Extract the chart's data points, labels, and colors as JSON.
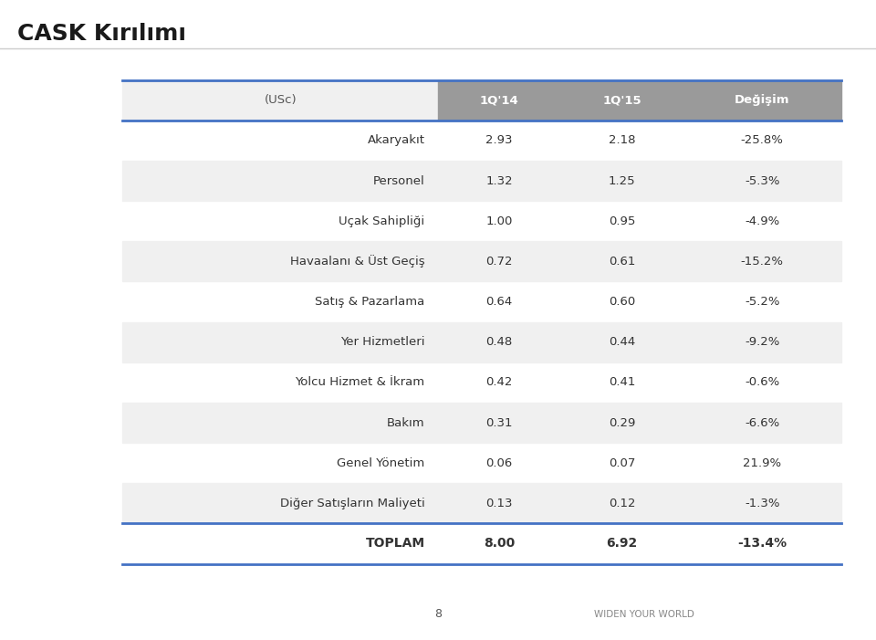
{
  "title_display": "CASK Kırılımı",
  "header": [
    "(USc)",
    "1Q'14",
    "1Q'15",
    "Değişim"
  ],
  "rows": [
    [
      "Akaryakıt",
      "2.93",
      "2.18",
      "-25.8%"
    ],
    [
      "Personel",
      "1.32",
      "1.25",
      "-5.3%"
    ],
    [
      "Uçak Sahipliği",
      "1.00",
      "0.95",
      "-4.9%"
    ],
    [
      "Havaalanı & Üst Geçiş",
      "0.72",
      "0.61",
      "-15.2%"
    ],
    [
      "Satış & Pazarlama",
      "0.64",
      "0.60",
      "-5.2%"
    ],
    [
      "Yer Hizmetleri",
      "0.48",
      "0.44",
      "-9.2%"
    ],
    [
      "Yolcu Hizmet & İkram",
      "0.42",
      "0.41",
      "-0.6%"
    ],
    [
      "Bakım",
      "0.31",
      "0.29",
      "-6.6%"
    ],
    [
      "Genel Yönetim",
      "0.06",
      "0.07",
      "21.9%"
    ],
    [
      "Diğer Satışların Maliyeti",
      "0.13",
      "0.12",
      "-1.3%"
    ]
  ],
  "footer": [
    "TOPLAM",
    "8.00",
    "6.92",
    "-13.4%"
  ],
  "background_color": "#ffffff",
  "title_color": "#1a1a1a",
  "row_even_bg": "#f0f0f0",
  "cell_text_color": "#333333",
  "page_number": "8",
  "brand_text": "WIDEN YOUR WORLD",
  "title_line_color": "#cccccc",
  "header_line_color": "#4472c4",
  "footer_line_color": "#4472c4"
}
